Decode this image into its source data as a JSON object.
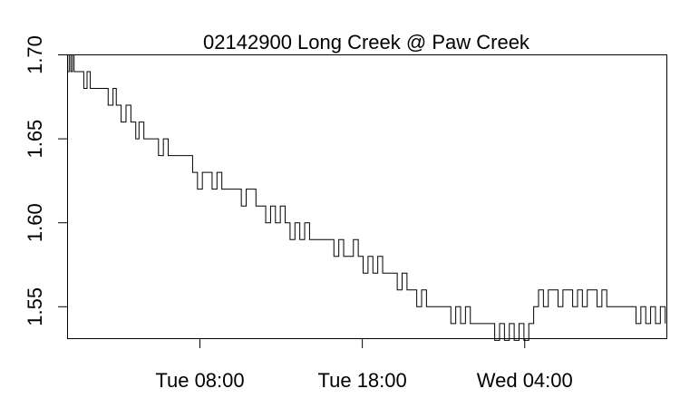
{
  "chart_data": {
    "type": "line",
    "title": "02142900 Long Creek @ Paw Creek",
    "xlabel": "",
    "ylabel": "",
    "x_unit": "hours",
    "xlim": [
      0,
      36.9
    ],
    "ylim": [
      1.531,
      1.7
    ],
    "x_ticks": [
      {
        "value": 8.15,
        "label": "Tue 08:00"
      },
      {
        "value": 18.15,
        "label": "Tue 18:00"
      },
      {
        "value": 28.15,
        "label": "Wed 04:00"
      }
    ],
    "y_ticks": [
      {
        "value": 1.55,
        "label": "1.55"
      },
      {
        "value": 1.6,
        "label": "1.60"
      },
      {
        "value": 1.65,
        "label": "1.65"
      },
      {
        "value": 1.7,
        "label": "1.70"
      }
    ],
    "grid": false,
    "series": [
      {
        "color": "#000000",
        "x": [
          0.0,
          0.1,
          0.2,
          0.3,
          0.4,
          0.5,
          0.6,
          0.8,
          1.0,
          1.2,
          1.4,
          1.6,
          1.8,
          2.0,
          2.2,
          2.5,
          2.8,
          3.0,
          3.3,
          3.6,
          3.9,
          4.2,
          4.4,
          4.7,
          5.0,
          5.3,
          5.6,
          5.9,
          6.2,
          6.5,
          6.8,
          7.1,
          7.4,
          7.7,
          8.0,
          8.3,
          8.6,
          8.9,
          9.2,
          9.5,
          9.8,
          10.1,
          10.4,
          10.7,
          11.0,
          11.3,
          11.6,
          11.9,
          12.2,
          12.5,
          12.8,
          13.1,
          13.4,
          13.7,
          14.0,
          14.3,
          14.6,
          14.9,
          15.2,
          15.5,
          15.8,
          16.1,
          16.4,
          16.7,
          17.0,
          17.3,
          17.6,
          17.9,
          18.2,
          18.5,
          18.8,
          19.1,
          19.4,
          19.7,
          20.0,
          20.3,
          20.6,
          20.9,
          21.2,
          21.5,
          21.8,
          22.1,
          22.4,
          22.7,
          23.0,
          23.3,
          23.6,
          23.9,
          24.2,
          24.5,
          24.8,
          25.1,
          25.4,
          25.7,
          26.0,
          26.3,
          26.6,
          26.9,
          27.2,
          27.5,
          27.8,
          28.1,
          28.4,
          28.7,
          29.0,
          29.3,
          29.6,
          29.9,
          30.2,
          30.5,
          30.8,
          31.1,
          31.4,
          31.7,
          32.0,
          32.3,
          32.6,
          32.9,
          33.2,
          33.5,
          33.8,
          34.1,
          34.4,
          34.7,
          35.0,
          35.3,
          35.6,
          35.9,
          36.2,
          36.5,
          36.8
        ],
        "y": [
          1.69,
          1.7,
          1.69,
          1.7,
          1.69,
          1.69,
          1.69,
          1.69,
          1.68,
          1.69,
          1.68,
          1.68,
          1.68,
          1.68,
          1.68,
          1.67,
          1.68,
          1.67,
          1.66,
          1.67,
          1.66,
          1.65,
          1.66,
          1.65,
          1.65,
          1.65,
          1.64,
          1.65,
          1.64,
          1.64,
          1.64,
          1.64,
          1.64,
          1.63,
          1.62,
          1.63,
          1.63,
          1.62,
          1.63,
          1.62,
          1.62,
          1.62,
          1.62,
          1.61,
          1.62,
          1.62,
          1.61,
          1.61,
          1.6,
          1.61,
          1.6,
          1.61,
          1.6,
          1.59,
          1.6,
          1.59,
          1.6,
          1.59,
          1.59,
          1.59,
          1.59,
          1.59,
          1.58,
          1.59,
          1.58,
          1.58,
          1.59,
          1.58,
          1.57,
          1.58,
          1.57,
          1.58,
          1.57,
          1.57,
          1.57,
          1.56,
          1.57,
          1.56,
          1.56,
          1.55,
          1.56,
          1.55,
          1.55,
          1.55,
          1.55,
          1.55,
          1.54,
          1.55,
          1.54,
          1.55,
          1.54,
          1.54,
          1.54,
          1.54,
          1.54,
          1.53,
          1.54,
          1.53,
          1.54,
          1.53,
          1.54,
          1.53,
          1.54,
          1.55,
          1.56,
          1.55,
          1.56,
          1.56,
          1.55,
          1.56,
          1.56,
          1.55,
          1.56,
          1.55,
          1.56,
          1.56,
          1.55,
          1.56,
          1.55,
          1.55,
          1.55,
          1.55,
          1.55,
          1.55,
          1.54,
          1.55,
          1.54,
          1.55,
          1.54,
          1.55,
          1.54
        ]
      }
    ]
  }
}
